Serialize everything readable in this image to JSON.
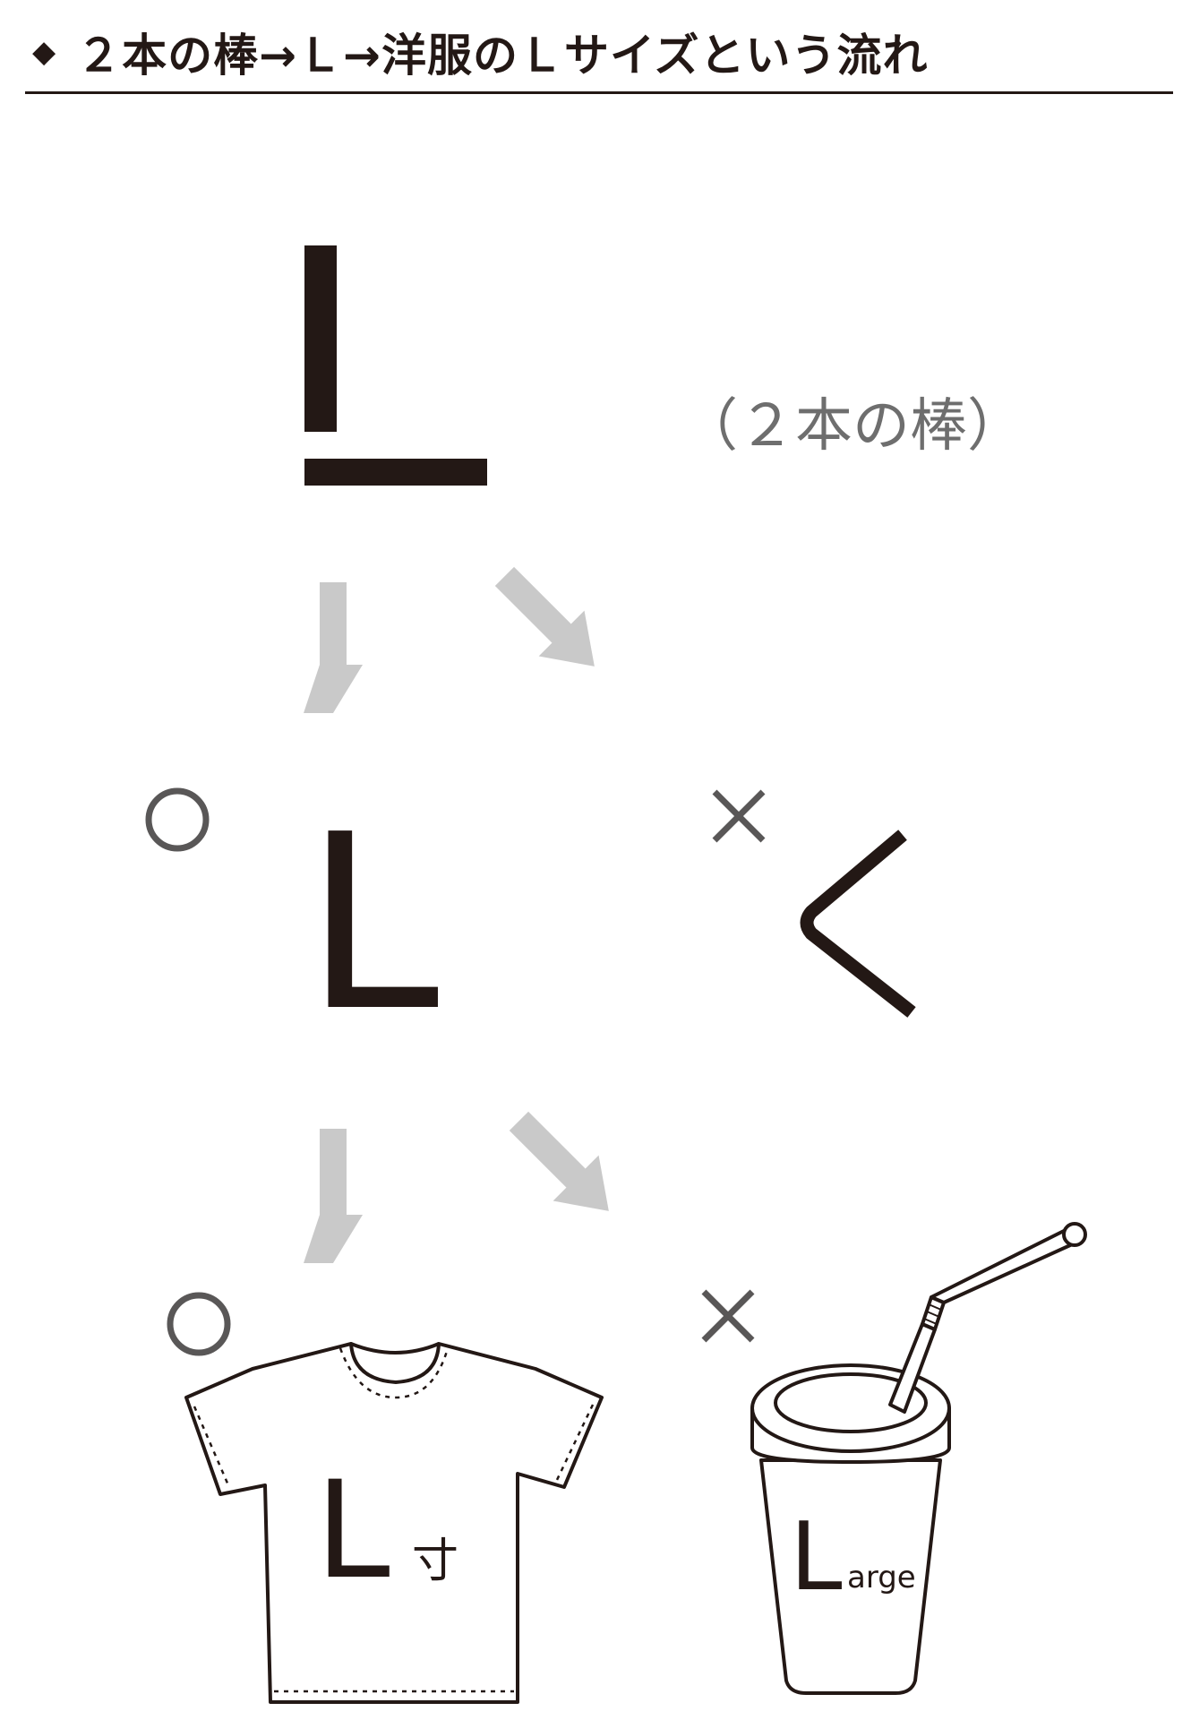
{
  "header": {
    "bullet": "◆",
    "title": "２本の棒→Ｌ→洋服のＬサイズという流れ"
  },
  "diagram": {
    "two_sticks_note": "（２本の棒）",
    "middle_letter": "L",
    "wrong_shape": "く",
    "shirt_letter": "L",
    "shirt_suffix": "寸",
    "cup_letter": "L",
    "cup_suffix": "arge",
    "correct_mark": "○",
    "wrong_mark": "×"
  },
  "colors": {
    "ink": "#231815",
    "arrow": "#c9c9c9",
    "mark": "#595757",
    "note": "#6e6e6e"
  }
}
